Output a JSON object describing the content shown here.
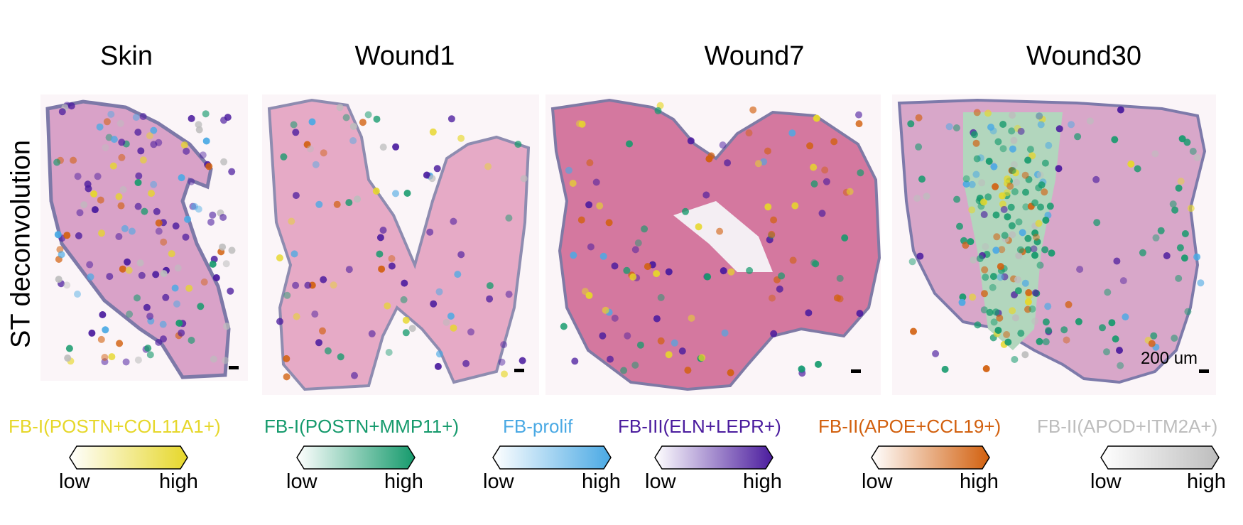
{
  "ylabel": "ST deconvolution",
  "panels": [
    {
      "title": "Skin"
    },
    {
      "title": "Wound1"
    },
    {
      "title": "Wound7"
    },
    {
      "title": "Wound30"
    }
  ],
  "scale_bar": "200 um",
  "legend": {
    "low": "low",
    "high": "high",
    "items": [
      {
        "label": "FB-I(POSTN+COL11A1+)",
        "color": "#e6d72a"
      },
      {
        "label": "FB-I(POSTN+MMP11+)",
        "color": "#159a6c"
      },
      {
        "label": "FB-prolif",
        "color": "#4aa9e4"
      },
      {
        "label": "FB-III(ELN+LEPR+)",
        "color": "#4b1c9e"
      },
      {
        "label": "FB-II(APOE+CCL19+)",
        "color": "#d2600e"
      },
      {
        "label": "FB-II(APOD+ITM2A+)",
        "color": "#bdbdbd"
      }
    ]
  }
}
